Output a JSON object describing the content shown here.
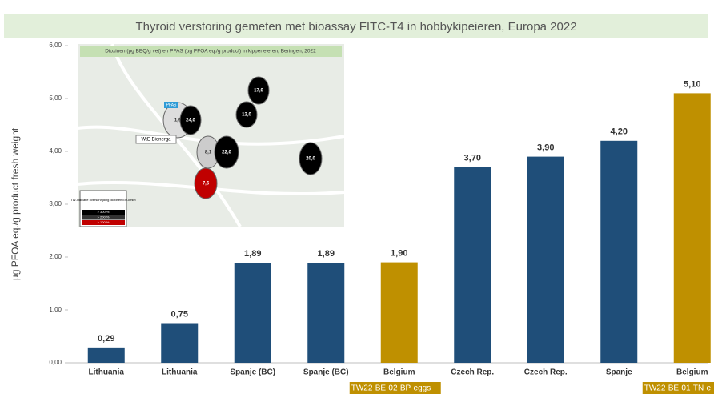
{
  "chart_data": {
    "type": "bar",
    "title": "Thyroid verstoring gemeten met  bioassay FITC-T4 in hobbykipeieren, Europa 2022",
    "y_label": "µg PFOA eq./g product fresh weight",
    "categories": [
      "Lithuania",
      "Lithuania",
      "Spanje (BC)",
      "Spanje (BC)",
      "Belgium",
      "Czech Rep.",
      "Czech Rep.",
      "Spanje",
      "Belgium"
    ],
    "values": [
      0.29,
      0.75,
      1.89,
      1.89,
      1.9,
      3.7,
      3.9,
      4.2,
      5.1
    ],
    "value_labels": [
      "0,29",
      "0,75",
      "1,89",
      "1,89",
      "1,90",
      "3,70",
      "3,90",
      "4,20",
      "5,10"
    ],
    "colors": [
      "#1f4e79",
      "#1f4e79",
      "#1f4e79",
      "#1f4e79",
      "#bf9000",
      "#1f4e79",
      "#1f4e79",
      "#1f4e79",
      "#bf9000"
    ],
    "ylim": [
      0,
      6
    ],
    "yticks": [
      {
        "value": 0,
        "label": "0,00"
      },
      {
        "value": 1,
        "label": "1,00"
      },
      {
        "value": 2,
        "label": "2,00"
      },
      {
        "value": 3,
        "label": "3,00"
      },
      {
        "value": 4,
        "label": "4,00"
      },
      {
        "value": 5,
        "label": "5,00"
      },
      {
        "value": 6,
        "label": "6,00"
      }
    ],
    "grid": false,
    "annotations": [
      {
        "category": 4,
        "text": "TW22-BE-02-BP-eggs"
      },
      {
        "category": 8,
        "text": "TW22-BE-01-TN-e"
      }
    ],
    "inset": {
      "title": "Dioxinen (pg BEQ/g vet) en PFAS (µg PFOA eq./g product) in kippeneieren, Beringen, 2022",
      "pfas_label": "PFAS",
      "site_label": "WtE Bionerga",
      "markers": [
        "1,9",
        "24,0",
        "8,1",
        "22,0",
        "17,0",
        "12,0",
        "20,0",
        "7,6"
      ],
      "legend_title": "TW-indicatie overschrijding dioxinen EU-limiet",
      "legend_items": [
        "> 300 %",
        "> 200 %",
        "> 100 %"
      ]
    }
  }
}
